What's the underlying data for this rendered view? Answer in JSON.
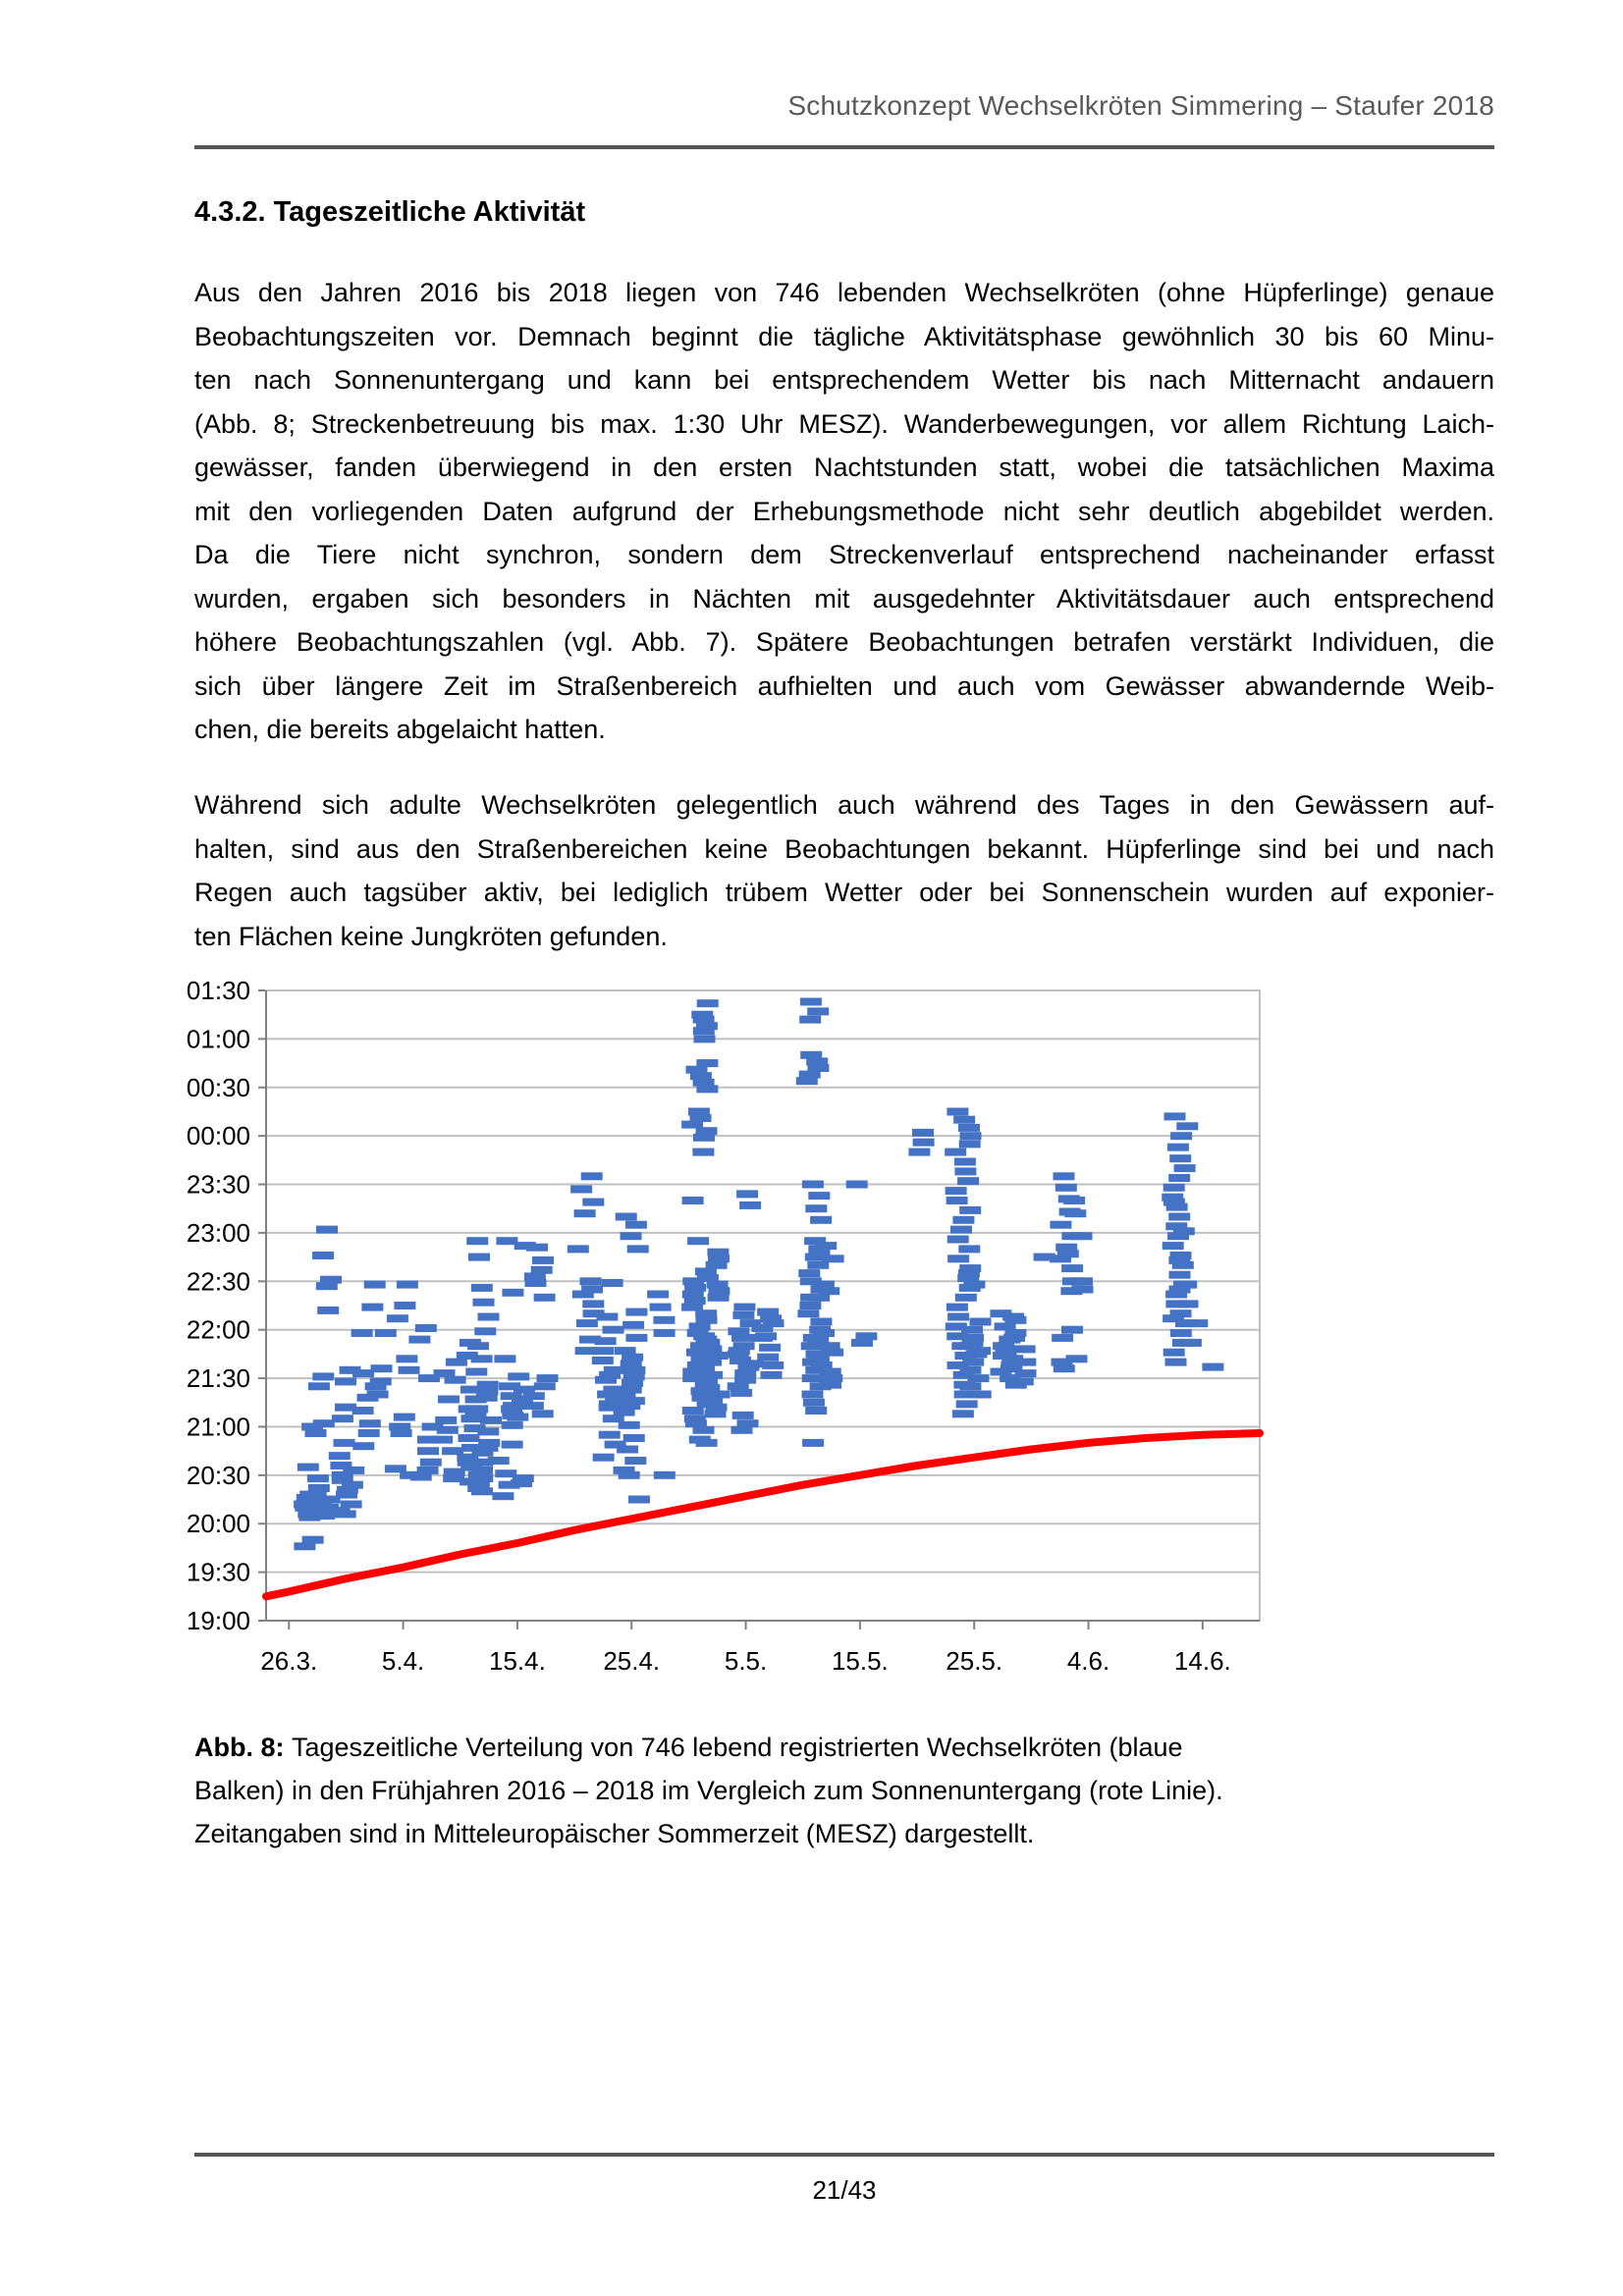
{
  "page": {
    "number": "21/43"
  },
  "header": {
    "text": "Schutzkonzept Wechselkröten Simmering – Staufer 2018"
  },
  "section": {
    "heading": "4.3.2. Tageszeitliche Aktivität"
  },
  "paragraphs": [
    {
      "lines": [
        "Aus den Jahren 2016 bis 2018 liegen von 746 lebenden Wechselkröten (ohne Hüpferlinge) genaue",
        "Beobachtungszeiten vor. Demnach beginnt die tägliche Aktivitätsphase gewöhnlich 30 bis 60 Minu-",
        "ten nach Sonnenuntergang und kann bei entsprechendem Wetter bis nach Mitternacht andauern",
        "(Abb. 8; Streckenbetreuung bis max. 1:30 Uhr MESZ). Wanderbewegungen, vor allem Richtung Laich-",
        "gewässer, fanden überwiegend in den ersten Nachtstunden statt, wobei die tatsächlichen Maxima",
        "mit den vorliegenden Daten aufgrund der Erhebungsmethode nicht sehr deutlich abgebildet werden.",
        "Da die Tiere nicht synchron, sondern dem Streckenverlauf entsprechend nacheinander erfasst",
        "wurden, ergaben sich besonders in Nächten mit ausgedehnter Aktivitätsdauer auch entsprechend",
        "höhere Beobachtungszahlen (vgl. Abb. 7). Spätere Beobachtungen betrafen verstärkt Individuen, die",
        "sich über längere Zeit im Straßenbereich aufhielten und auch vom Gewässer abwandernde Weib-",
        "chen, die bereits abgelaicht hatten."
      ]
    },
    {
      "lines": [
        "Während sich adulte Wechselkröten gelegentlich auch während des Tages in den Gewässern auf-",
        "halten, sind aus den Straßenbereichen keine Beobachtungen bekannt. Hüpferlinge sind bei und nach",
        "Regen auch tagsüber aktiv, bei lediglich trübem Wetter oder bei Sonnenschein wurden auf exponier-",
        "ten Flächen keine Jungkröten gefunden."
      ]
    }
  ],
  "figure": {
    "label": "Abb. 8:",
    "caption_lines": [
      "Tageszeitliche Verteilung von 746 lebend registrierten Wechselkröten (blaue",
      "Balken) in den Frühjahren 2016 – 2018 im Vergleich zum Sonnenuntergang (rote Linie).",
      "Zeitangaben sind in Mitteleuropäischer Sommerzeit (MESZ) dargestellt."
    ]
  },
  "chart_data": {
    "type": "scatter",
    "marker": "horizontal-dash",
    "marker_color": "#4472C4",
    "sunset_color": "#FF0000",
    "grid_color": "#c0c0c0",
    "axis_color": "#808080",
    "grid": true,
    "legend": "none",
    "x_ticks": [
      "26.3.",
      "5.4.",
      "15.4.",
      "25.4.",
      "5.5.",
      "15.5.",
      "25.5.",
      "4.6.",
      "14.6."
    ],
    "x_tick_days": [
      0,
      10,
      20,
      30,
      40,
      50,
      60,
      70,
      80
    ],
    "x_range_days": [
      -2,
      85
    ],
    "y_ticks": [
      "01:30",
      "01:00",
      "00:30",
      "00:00",
      "23:30",
      "23:00",
      "22:30",
      "22:00",
      "21:30",
      "21:00",
      "20:30",
      "20:00",
      "19:30",
      "19:00"
    ],
    "y_range": [
      "19:00",
      "01:30"
    ],
    "sunset_line": [
      [
        -2,
        "19:15"
      ],
      [
        0,
        "19:18"
      ],
      [
        5,
        "19:26"
      ],
      [
        10,
        "19:33"
      ],
      [
        15,
        "19:41"
      ],
      [
        20,
        "19:48"
      ],
      [
        25,
        "19:56"
      ],
      [
        30,
        "20:03"
      ],
      [
        35,
        "20:10"
      ],
      [
        40,
        "20:17"
      ],
      [
        45,
        "20:24"
      ],
      [
        50,
        "20:30"
      ],
      [
        55,
        "20:36"
      ],
      [
        60,
        "20:41"
      ],
      [
        65,
        "20:46"
      ],
      [
        70,
        "20:50"
      ],
      [
        75,
        "20:53"
      ],
      [
        80,
        "20:55"
      ],
      [
        85,
        "20:56"
      ]
    ],
    "observations": [
      {
        "day": 2,
        "times": [
          "19:46",
          "19:50",
          "20:04",
          "20:06",
          "20:08",
          "20:10",
          "20:12",
          "20:14",
          "20:16",
          "20:18",
          "20:07",
          "20:11",
          "20:15",
          "20:22",
          "20:28",
          "20:35",
          "21:00"
        ]
      },
      {
        "day": 3,
        "times": [
          "20:05",
          "20:08",
          "20:12",
          "20:15",
          "20:18",
          "20:10",
          "20:56",
          "21:02",
          "21:25",
          "21:31",
          "22:12",
          "22:27",
          "22:31",
          "22:46",
          "23:02"
        ]
      },
      {
        "day": 5,
        "times": [
          "20:06",
          "20:12",
          "20:18",
          "20:24",
          "20:30",
          "20:36",
          "20:42",
          "20:50",
          "20:08",
          "20:21",
          "20:27",
          "20:33",
          "21:05",
          "21:12",
          "21:28",
          "21:35"
        ]
      },
      {
        "day": 7,
        "times": [
          "20:48",
          "20:56",
          "21:02",
          "21:10",
          "21:18",
          "21:25",
          "21:33",
          "21:58",
          "22:28"
        ]
      },
      {
        "day": 8,
        "times": [
          "21:20",
          "21:28",
          "21:36",
          "21:58",
          "22:14"
        ]
      },
      {
        "day": 10,
        "times": [
          "20:30",
          "20:34",
          "20:56",
          "21:00",
          "21:06",
          "21:35",
          "21:42",
          "22:07",
          "22:15",
          "22:28"
        ]
      },
      {
        "day": 12,
        "times": [
          "20:29",
          "20:33",
          "20:38",
          "20:45",
          "20:52",
          "21:00",
          "21:30",
          "21:54",
          "22:01"
        ]
      },
      {
        "day": 14,
        "times": [
          "20:28",
          "20:32",
          "20:45",
          "20:52",
          "20:58",
          "21:04",
          "21:17",
          "21:29",
          "21:33",
          "21:40"
        ]
      },
      {
        "day": 16,
        "times": [
          "20:22",
          "20:26",
          "20:30",
          "20:35",
          "20:41",
          "20:47",
          "20:53",
          "20:59",
          "21:05",
          "21:11",
          "21:17",
          "21:23",
          "20:38",
          "21:44",
          "21:52"
        ]
      },
      {
        "day": 17,
        "times": [
          "20:20",
          "20:24",
          "20:28",
          "20:33",
          "20:38",
          "20:44",
          "20:50",
          "20:57",
          "21:04",
          "21:11",
          "21:18",
          "21:26",
          "21:34",
          "21:42",
          "21:50",
          "21:59",
          "22:08",
          "22:17",
          "22:26",
          "22:45",
          "22:55",
          "20:47",
          "21:07",
          "21:22"
        ]
      },
      {
        "day": 19,
        "times": [
          "20:17",
          "20:24",
          "20:31",
          "20:39",
          "20:49",
          "21:01",
          "21:07",
          "21:13",
          "21:19",
          "21:25",
          "21:42",
          "22:55"
        ]
      },
      {
        "day": 20,
        "times": [
          "20:25",
          "20:28",
          "21:06",
          "21:11",
          "21:17",
          "21:23",
          "21:31",
          "22:23",
          "22:52"
        ]
      },
      {
        "day": 22,
        "times": [
          "21:08",
          "21:13",
          "21:19",
          "21:25",
          "21:30",
          "22:20",
          "22:29",
          "22:33",
          "22:37",
          "22:43",
          "22:51"
        ]
      },
      {
        "day": 26,
        "times": [
          "21:47",
          "21:54",
          "22:04",
          "22:10",
          "22:16",
          "22:22",
          "22:25",
          "22:30",
          "22:50",
          "23:12",
          "23:19",
          "23:27",
          "23:35"
        ]
      },
      {
        "day": 28,
        "times": [
          "20:41",
          "20:49",
          "20:55",
          "21:05",
          "21:12",
          "21:17",
          "21:23",
          "21:29",
          "21:35",
          "21:41",
          "21:47",
          "21:53",
          "22:00",
          "22:08",
          "22:29",
          "21:14",
          "21:20",
          "21:32"
        ]
      },
      {
        "day": 30,
        "times": [
          "20:15",
          "20:30",
          "20:33",
          "20:39",
          "20:46",
          "20:53",
          "21:01",
          "21:09",
          "21:16",
          "21:23",
          "21:31",
          "21:39",
          "21:47",
          "21:55",
          "22:03",
          "22:11",
          "21:13",
          "21:20",
          "21:27",
          "21:35",
          "21:43",
          "22:50",
          "22:58",
          "23:05",
          "23:10"
        ]
      },
      {
        "day": 33,
        "times": [
          "20:30",
          "21:58",
          "22:06",
          "22:14",
          "22:22"
        ]
      },
      {
        "day": 36,
        "times": [
          "01:22",
          "01:15",
          "01:12",
          "01:08",
          "01:05",
          "01:00",
          "00:45",
          "00:41",
          "00:37",
          "00:33",
          "00:29",
          "00:15",
          "00:11",
          "00:07",
          "00:03",
          "23:59",
          "23:50",
          "23:20",
          "22:55",
          "22:30",
          "22:26",
          "22:22",
          "22:18",
          "22:14",
          "22:10",
          "22:06",
          "22:02",
          "21:58",
          "21:54",
          "21:50",
          "21:46",
          "21:42",
          "21:38",
          "21:34",
          "21:30",
          "21:26",
          "21:22",
          "21:18",
          "21:14",
          "21:10",
          "21:05",
          "21:02",
          "20:58",
          "20:52"
        ]
      },
      {
        "day": 37,
        "times": [
          "22:48",
          "22:44",
          "22:40",
          "22:36",
          "22:32",
          "22:28",
          "22:24",
          "22:20",
          "21:56",
          "21:52",
          "21:48",
          "21:44",
          "21:40",
          "21:36",
          "21:32",
          "21:28",
          "21:24",
          "21:20",
          "21:16",
          "21:12",
          "21:08",
          "20:50"
        ]
      },
      {
        "day": 40,
        "times": [
          "23:24",
          "23:17",
          "22:14",
          "22:09",
          "22:04",
          "21:59",
          "21:55",
          "21:50",
          "21:45",
          "21:41",
          "21:37",
          "21:33",
          "21:29",
          "21:25",
          "21:21",
          "21:07",
          "21:02",
          "20:58",
          "21:47",
          "21:39"
        ]
      },
      {
        "day": 42,
        "times": [
          "22:11",
          "22:07",
          "22:01",
          "21:55",
          "21:49",
          "21:43",
          "21:38",
          "21:32",
          "21:56",
          "22:04"
        ]
      },
      {
        "day": 46,
        "times": [
          "01:23",
          "01:17",
          "01:12",
          "00:50",
          "00:46",
          "00:42",
          "00:38",
          "00:34",
          "23:30",
          "23:23",
          "23:15",
          "23:08",
          "22:55",
          "22:50",
          "22:45",
          "22:40",
          "22:35",
          "22:30",
          "22:25",
          "22:20",
          "22:15",
          "22:10",
          "22:05",
          "22:00",
          "21:55",
          "21:50",
          "21:45",
          "21:40",
          "21:35",
          "21:30",
          "21:25",
          "21:20",
          "21:15",
          "21:10",
          "20:50"
        ]
      },
      {
        "day": 47,
        "times": [
          "22:52",
          "22:48",
          "22:44",
          "22:28",
          "22:24",
          "22:20",
          "21:58",
          "21:54",
          "21:50",
          "21:46",
          "21:42",
          "21:38",
          "21:34",
          "21:30",
          "21:26"
        ]
      },
      {
        "day": 50,
        "times": [
          "23:30",
          "21:56",
          "21:52"
        ]
      },
      {
        "day": 55,
        "times": [
          "00:02",
          "23:56",
          "23:50"
        ]
      },
      {
        "day": 59,
        "times": [
          "00:15",
          "00:10",
          "00:05",
          "00:00",
          "23:55",
          "23:50",
          "23:44",
          "23:38",
          "23:32",
          "23:26",
          "23:20",
          "23:14",
          "23:08",
          "23:02",
          "22:56",
          "22:50",
          "22:44",
          "22:38",
          "22:32",
          "22:26",
          "22:20",
          "22:14",
          "22:08",
          "22:02",
          "21:56",
          "21:50",
          "21:44",
          "21:38",
          "21:32",
          "21:26",
          "21:20",
          "21:14",
          "21:08"
        ]
      },
      {
        "day": 60,
        "times": [
          "22:35",
          "22:28",
          "22:05",
          "22:00",
          "21:55",
          "21:50",
          "21:45",
          "21:40",
          "21:35",
          "21:30",
          "21:25",
          "21:20",
          "21:47",
          "21:52"
        ]
      },
      {
        "day": 63,
        "times": [
          "22:10",
          "22:06",
          "22:02",
          "21:58",
          "21:54",
          "21:50",
          "21:46",
          "21:42",
          "21:38",
          "21:34",
          "21:30",
          "21:26",
          "21:44",
          "21:36"
        ]
      },
      {
        "day": 64,
        "times": [
          "22:08",
          "21:55",
          "21:48",
          "21:40",
          "21:33",
          "21:28"
        ]
      },
      {
        "day": 66,
        "times": [
          "22:45"
        ]
      },
      {
        "day": 68,
        "times": [
          "23:35",
          "23:28",
          "23:21",
          "23:13",
          "23:05",
          "22:58",
          "22:51",
          "22:44",
          "22:38",
          "22:30",
          "22:24",
          "22:00",
          "21:55",
          "21:40",
          "21:36",
          "22:47"
        ]
      },
      {
        "day": 69,
        "times": [
          "23:20",
          "23:12",
          "22:58",
          "22:30",
          "22:25",
          "21:42"
        ]
      },
      {
        "day": 78,
        "times": [
          "00:12",
          "00:06",
          "00:00",
          "23:53",
          "23:46",
          "23:40",
          "23:34",
          "23:28",
          "23:22",
          "23:16",
          "23:10",
          "23:04",
          "22:58",
          "22:52",
          "22:46",
          "22:40",
          "22:34",
          "22:28",
          "22:22",
          "22:16",
          "22:10",
          "22:04",
          "21:58",
          "21:52",
          "21:46",
          "21:40",
          "23:19",
          "23:01",
          "22:43",
          "22:25",
          "22:07"
        ]
      },
      {
        "day": 79,
        "times": [
          "22:28",
          "22:16",
          "22:04",
          "21:52"
        ]
      },
      {
        "day": 81,
        "times": [
          "21:37"
        ]
      }
    ]
  }
}
